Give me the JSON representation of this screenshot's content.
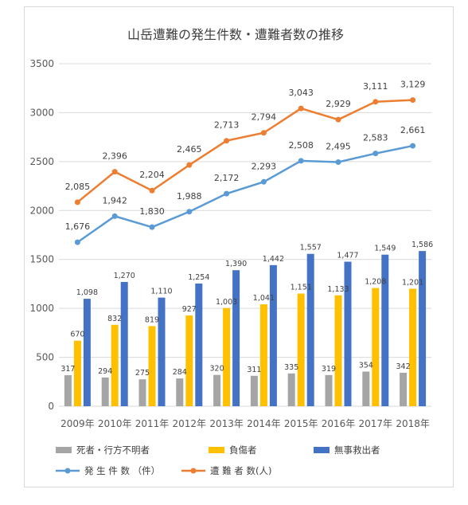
{
  "chart_data": {
    "type": "bar+line",
    "title": "山岳遭難の発生件数・遭難者数の推移",
    "categories": [
      "2009年",
      "2010年",
      "2011年",
      "2012年",
      "2013年",
      "2014年",
      "2015年",
      "2016年",
      "2017年",
      "2018年"
    ],
    "ylim": [
      0,
      3500
    ],
    "yticks": [
      0,
      500,
      1000,
      1500,
      2000,
      2500,
      3000,
      3500
    ],
    "grid": true,
    "legend_position": "bottom",
    "bar_series": [
      {
        "name": "死者・行方不明者",
        "color": "#a5a5a5",
        "values": [
          317,
          294,
          275,
          284,
          320,
          311,
          335,
          319,
          354,
          342
        ]
      },
      {
        "name": "負傷者",
        "color": "#ffc000",
        "values": [
          670,
          832,
          819,
          927,
          1003,
          1041,
          1151,
          1133,
          1208,
          1201
        ]
      },
      {
        "name": "無事救出者",
        "color": "#4472c4",
        "values": [
          1098,
          1270,
          1110,
          1254,
          1390,
          1442,
          1557,
          1477,
          1549,
          1586
        ]
      }
    ],
    "line_series": [
      {
        "name": "発 生 件 数 （件）",
        "color": "#5b9bd5",
        "values": [
          1676,
          1942,
          1830,
          1988,
          2172,
          2293,
          2508,
          2495,
          2583,
          2661
        ]
      },
      {
        "name": "遭 難 者 数(人)",
        "color": "#ed7d31",
        "values": [
          2085,
          2396,
          2204,
          2465,
          2713,
          2794,
          3043,
          2929,
          3111,
          3129
        ]
      }
    ]
  }
}
